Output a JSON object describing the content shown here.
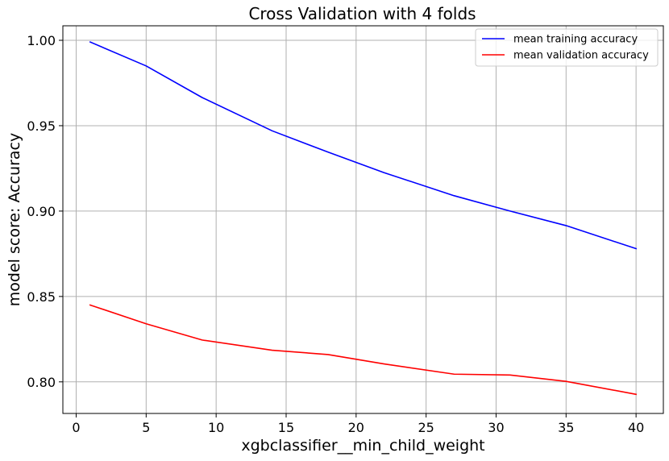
{
  "chart_data": {
    "type": "line",
    "title": "Cross Validation with 4 folds",
    "xlabel": "xgbclassifier__min_child_weight",
    "ylabel": "model score: Accuracy",
    "xlim": [
      -0.95,
      41.95
    ],
    "ylim": [
      0.7815,
      1.0085
    ],
    "xticks": [
      0,
      5,
      10,
      15,
      20,
      25,
      30,
      35,
      40
    ],
    "xtick_labels": [
      "0",
      "5",
      "10",
      "15",
      "20",
      "25",
      "30",
      "35",
      "40"
    ],
    "yticks": [
      0.8,
      0.85,
      0.9,
      0.95,
      1.0
    ],
    "ytick_labels": [
      "0.80",
      "0.85",
      "0.90",
      "0.95",
      "1.00"
    ],
    "grid": true,
    "legend_position": "top-right",
    "x": [
      1,
      5,
      9,
      14,
      18,
      22,
      27,
      31,
      35,
      40
    ],
    "series": [
      {
        "name": "mean training accuracy",
        "color": "#0000ff",
        "values": [
          0.999,
          0.985,
          0.9665,
          0.947,
          0.9345,
          0.9225,
          0.909,
          0.9,
          0.8915,
          0.878
        ]
      },
      {
        "name": "mean validation accuracy",
        "color": "#ff0000",
        "values": [
          0.845,
          0.834,
          0.8245,
          0.8185,
          0.816,
          0.8105,
          0.8045,
          0.804,
          0.8003,
          0.7927
        ]
      }
    ]
  }
}
